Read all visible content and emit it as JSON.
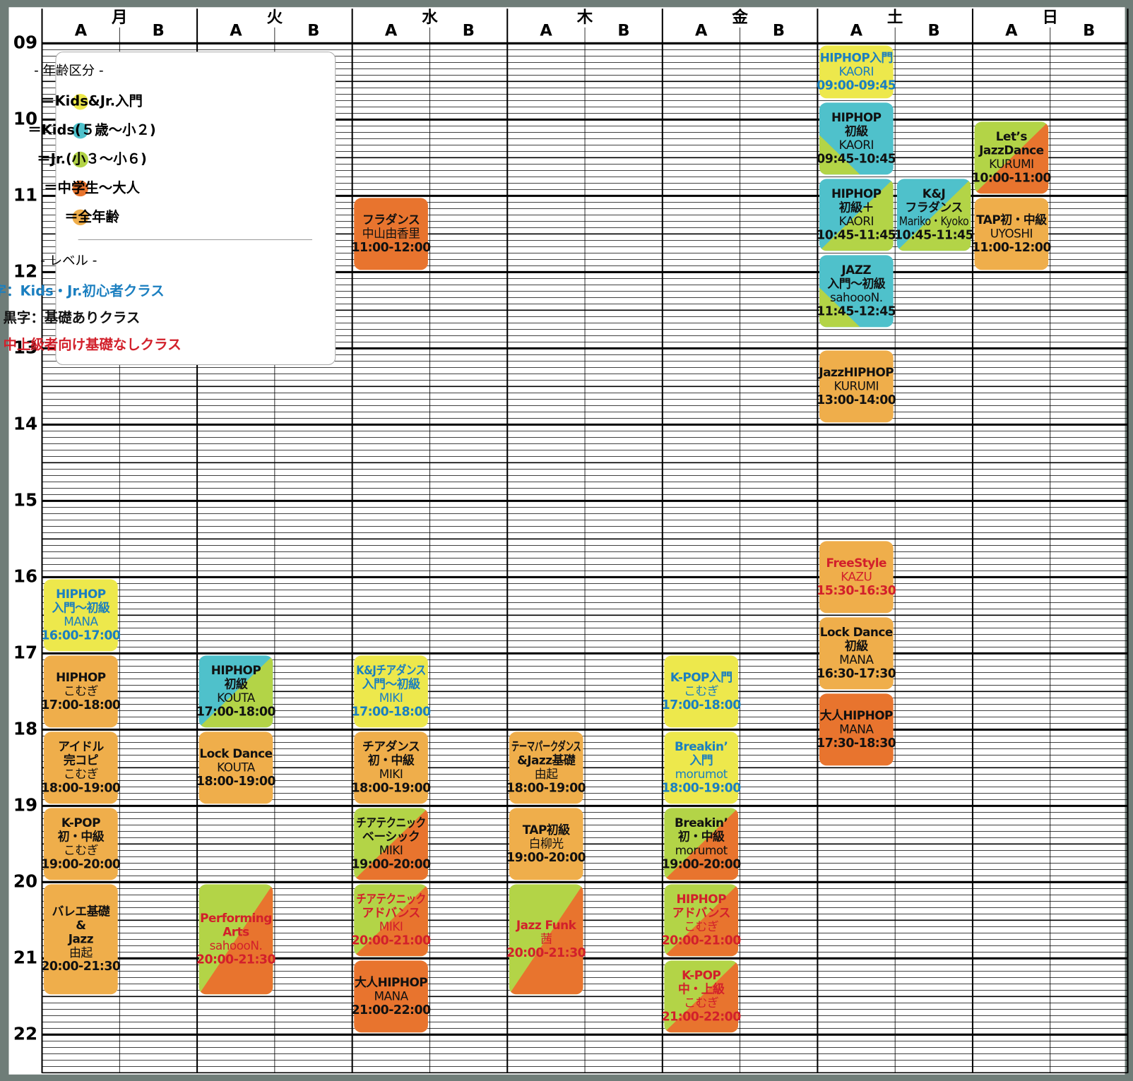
{
  "days": [
    {
      "name": "月",
      "lanes": [
        "A",
        "B"
      ]
    },
    {
      "name": "火",
      "lanes": [
        "A",
        "B"
      ]
    },
    {
      "name": "水",
      "lanes": [
        "A",
        "B"
      ]
    },
    {
      "name": "木",
      "lanes": [
        "A",
        "B"
      ]
    },
    {
      "name": "金",
      "lanes": [
        "A",
        "B"
      ]
    },
    {
      "name": "土",
      "lanes": [
        "A",
        "B"
      ]
    },
    {
      "name": "日",
      "lanes": [
        "A",
        "B"
      ]
    }
  ],
  "hours": [
    "09",
    "10",
    "11",
    "12",
    "13",
    "14",
    "15",
    "16",
    "17",
    "18",
    "19",
    "20",
    "21",
    "22"
  ],
  "legend": {
    "age_title": "- 年齢区分 -",
    "age_items": [
      {
        "label": "＝Kids&Jr.入門",
        "color": "#ede84c"
      },
      {
        "label": "＝Kids(５歳〜小２)",
        "color": "#4fc1cb"
      },
      {
        "label": "＝Jr.(小３〜小６)",
        "color": "#b3d447"
      },
      {
        "label": "＝中学生〜大人",
        "color": "#e8742e"
      },
      {
        "label": "＝全年齢",
        "color": "#efae4b"
      }
    ],
    "level_title": "- レベル -",
    "level_items": [
      {
        "label": "青字：Kids・Jr.初心者クラス",
        "color": "#1b7fc0"
      },
      {
        "label": "黒字：基礎ありクラス",
        "color": "#111111"
      },
      {
        "label": "赤字：中上級者向け基礎なしクラス",
        "color": "#d2202b"
      }
    ]
  },
  "classes": [
    {
      "day": 0,
      "lane": 0,
      "lines": [
        "HIPHOP",
        "入門〜初級",
        "MANA"
      ],
      "time": "16:00-17:00",
      "fill": [
        "#ede84c"
      ],
      "text_color": "#1b7fc0"
    },
    {
      "day": 0,
      "lane": 0,
      "lines": [
        "HIPHOP",
        "こむぎ"
      ],
      "time": "17:00-18:00",
      "fill": [
        "#efae4b"
      ],
      "text_color": "#111111"
    },
    {
      "day": 0,
      "lane": 0,
      "lines": [
        "アイドル",
        "完コピ",
        "こむぎ"
      ],
      "time": "18:00-19:00",
      "fill": [
        "#efae4b"
      ],
      "text_color": "#111111"
    },
    {
      "day": 0,
      "lane": 0,
      "lines": [
        "K-POP",
        "初・中級",
        "こむぎ"
      ],
      "time": "19:00-20:00",
      "fill": [
        "#efae4b"
      ],
      "text_color": "#111111"
    },
    {
      "day": 0,
      "lane": 0,
      "lines": [
        "バレエ基礎",
        "&",
        "Jazz",
        "由起"
      ],
      "time": "20:00-21:30",
      "fill": [
        "#efae4b"
      ],
      "text_color": "#111111"
    },
    {
      "day": 1,
      "lane": 0,
      "lines": [
        "HIPHOP",
        "初級",
        "KOUTA"
      ],
      "time": "17:00-18:00",
      "fill": [
        "#4fc1cb",
        "#b3d447"
      ],
      "corner": "br",
      "text_color": "#111111"
    },
    {
      "day": 1,
      "lane": 0,
      "lines": [
        "Lock Dance",
        "KOUTA"
      ],
      "time": "18:00-19:00",
      "fill": [
        "#efae4b"
      ],
      "text_color": "#111111"
    },
    {
      "day": 1,
      "lane": 0,
      "lines": [
        "Performing",
        "Arts",
        "sahoooN."
      ],
      "time": "20:00-21:30",
      "fill": [
        "#b3d447",
        "#e8742e"
      ],
      "corner": "br",
      "text_color": "#d2202b"
    },
    {
      "day": 2,
      "lane": 0,
      "lines": [
        "フラダンス",
        "中山由香里"
      ],
      "time": "11:00-12:00",
      "fill": [
        "#e8742e"
      ],
      "text_color": "#111111"
    },
    {
      "day": 2,
      "lane": 0,
      "lines": [
        "K&Jチアダンス",
        "入門〜初級",
        "MIKI"
      ],
      "time": "17:00-18:00",
      "fill": [
        "#ede84c"
      ],
      "text_color": "#1b7fc0"
    },
    {
      "day": 2,
      "lane": 0,
      "lines": [
        "チアダンス",
        "初・中級",
        "MIKI"
      ],
      "time": "18:00-19:00",
      "fill": [
        "#efae4b"
      ],
      "text_color": "#111111"
    },
    {
      "day": 2,
      "lane": 0,
      "lines": [
        "チアテクニック",
        "ベーシック",
        "MIKI"
      ],
      "time": "19:00-20:00",
      "fill": [
        "#b3d447",
        "#e8742e"
      ],
      "corner": "br",
      "text_color": "#111111"
    },
    {
      "day": 2,
      "lane": 0,
      "lines": [
        "チアテクニック",
        "アドバンス",
        "MIKI"
      ],
      "time": "20:00-21:00",
      "fill": [
        "#b3d447",
        "#e8742e"
      ],
      "corner": "br",
      "text_color": "#d2202b"
    },
    {
      "day": 2,
      "lane": 0,
      "lines": [
        "大人HIPHOP",
        "MANA"
      ],
      "time": "21:00-22:00",
      "fill": [
        "#e8742e"
      ],
      "text_color": "#111111"
    },
    {
      "day": 3,
      "lane": 0,
      "lines": [
        "テーマパークダンス",
        "&Jazz基礎",
        "由起"
      ],
      "time": "18:00-19:00",
      "fill": [
        "#efae4b"
      ],
      "text_color": "#111111"
    },
    {
      "day": 3,
      "lane": 0,
      "lines": [
        "TAP初級",
        "白柳光"
      ],
      "time": "19:00-20:00",
      "fill": [
        "#efae4b"
      ],
      "text_color": "#111111"
    },
    {
      "day": 3,
      "lane": 0,
      "lines": [
        "Jazz Funk",
        "茜"
      ],
      "time": "20:00-21:30",
      "fill": [
        "#b3d447",
        "#e8742e"
      ],
      "corner": "br",
      "text_color": "#d2202b"
    },
    {
      "day": 4,
      "lane": 0,
      "lines": [
        "K-POP入門",
        "こむぎ"
      ],
      "time": "17:00-18:00",
      "fill": [
        "#ede84c"
      ],
      "text_color": "#1b7fc0"
    },
    {
      "day": 4,
      "lane": 0,
      "lines": [
        "Breakin’",
        "入門",
        "morumot"
      ],
      "time": "18:00-19:00",
      "fill": [
        "#ede84c"
      ],
      "text_color": "#1b7fc0"
    },
    {
      "day": 4,
      "lane": 0,
      "lines": [
        "Breakin’",
        "初・中級",
        "morumot"
      ],
      "time": "19:00-20:00",
      "fill": [
        "#b3d447",
        "#e8742e"
      ],
      "corner": "br",
      "text_color": "#111111"
    },
    {
      "day": 4,
      "lane": 0,
      "lines": [
        "HIPHOP",
        "アドバンス",
        "こむぎ"
      ],
      "time": "20:00-21:00",
      "fill": [
        "#b3d447",
        "#e8742e"
      ],
      "corner": "br",
      "text_color": "#d2202b"
    },
    {
      "day": 4,
      "lane": 0,
      "lines": [
        "K-POP",
        "中・上級",
        "こむぎ"
      ],
      "time": "21:00-22:00",
      "fill": [
        "#b3d447",
        "#e8742e"
      ],
      "corner": "br",
      "text_color": "#d2202b"
    },
    {
      "day": 5,
      "lane": 0,
      "lines": [
        "HIPHOP入門",
        "KAORI"
      ],
      "time": "09:00-09:45",
      "fill": [
        "#ede84c"
      ],
      "text_color": "#1b7fc0"
    },
    {
      "day": 5,
      "lane": 0,
      "lines": [
        "HIPHOP",
        "初級",
        "KAORI"
      ],
      "time": "09:45-10:45",
      "fill": [
        "#4fc1cb",
        "#b3d447"
      ],
      "corner": "bl",
      "text_color": "#111111"
    },
    {
      "day": 5,
      "lane": 0,
      "lines": [
        "HIPHOP",
        "初級＋",
        "KAORI"
      ],
      "time": "10:45-11:45",
      "fill": [
        "#4fc1cb",
        "#b3d447"
      ],
      "corner": "br",
      "text_color": "#111111"
    },
    {
      "day": 5,
      "lane": 1,
      "lines": [
        "K&J",
        "フラダンス",
        "Mariko・Kyoko"
      ],
      "time": "10:45-11:45",
      "fill": [
        "#4fc1cb",
        "#b3d447"
      ],
      "corner": "br",
      "text_color": "#111111"
    },
    {
      "day": 5,
      "lane": 0,
      "lines": [
        "JAZZ",
        "入門〜初級",
        "sahoooN."
      ],
      "time": "11:45-12:45",
      "fill": [
        "#4fc1cb",
        "#b3d447"
      ],
      "corner": "bl",
      "text_color": "#111111"
    },
    {
      "day": 5,
      "lane": 0,
      "lines": [
        "JazzHIPHOP",
        "KURUMI"
      ],
      "time": "13:00-14:00",
      "fill": [
        "#efae4b"
      ],
      "text_color": "#111111"
    },
    {
      "day": 5,
      "lane": 0,
      "lines": [
        "FreeStyle",
        "KAZU"
      ],
      "time": "15:30-16:30",
      "fill": [
        "#efae4b"
      ],
      "text_color": "#d2202b"
    },
    {
      "day": 5,
      "lane": 0,
      "lines": [
        "Lock Dance",
        "初級",
        "MANA"
      ],
      "time": "16:30-17:30",
      "fill": [
        "#efae4b"
      ],
      "text_color": "#111111"
    },
    {
      "day": 5,
      "lane": 0,
      "lines": [
        "大人HIPHOP",
        "MANA"
      ],
      "time": "17:30-18:30",
      "fill": [
        "#e8742e"
      ],
      "text_color": "#111111"
    },
    {
      "day": 6,
      "lane": 0,
      "lines": [
        "Let’s",
        "JazzDance",
        "KURUMI"
      ],
      "time": "10:00-11:00",
      "fill": [
        "#b3d447",
        "#e8742e"
      ],
      "corner": "br",
      "text_color": "#111111"
    },
    {
      "day": 6,
      "lane": 0,
      "lines": [
        "TAP初・中級",
        "UYOSHI"
      ],
      "time": "11:00-12:00",
      "fill": [
        "#efae4b"
      ],
      "text_color": "#111111"
    }
  ]
}
